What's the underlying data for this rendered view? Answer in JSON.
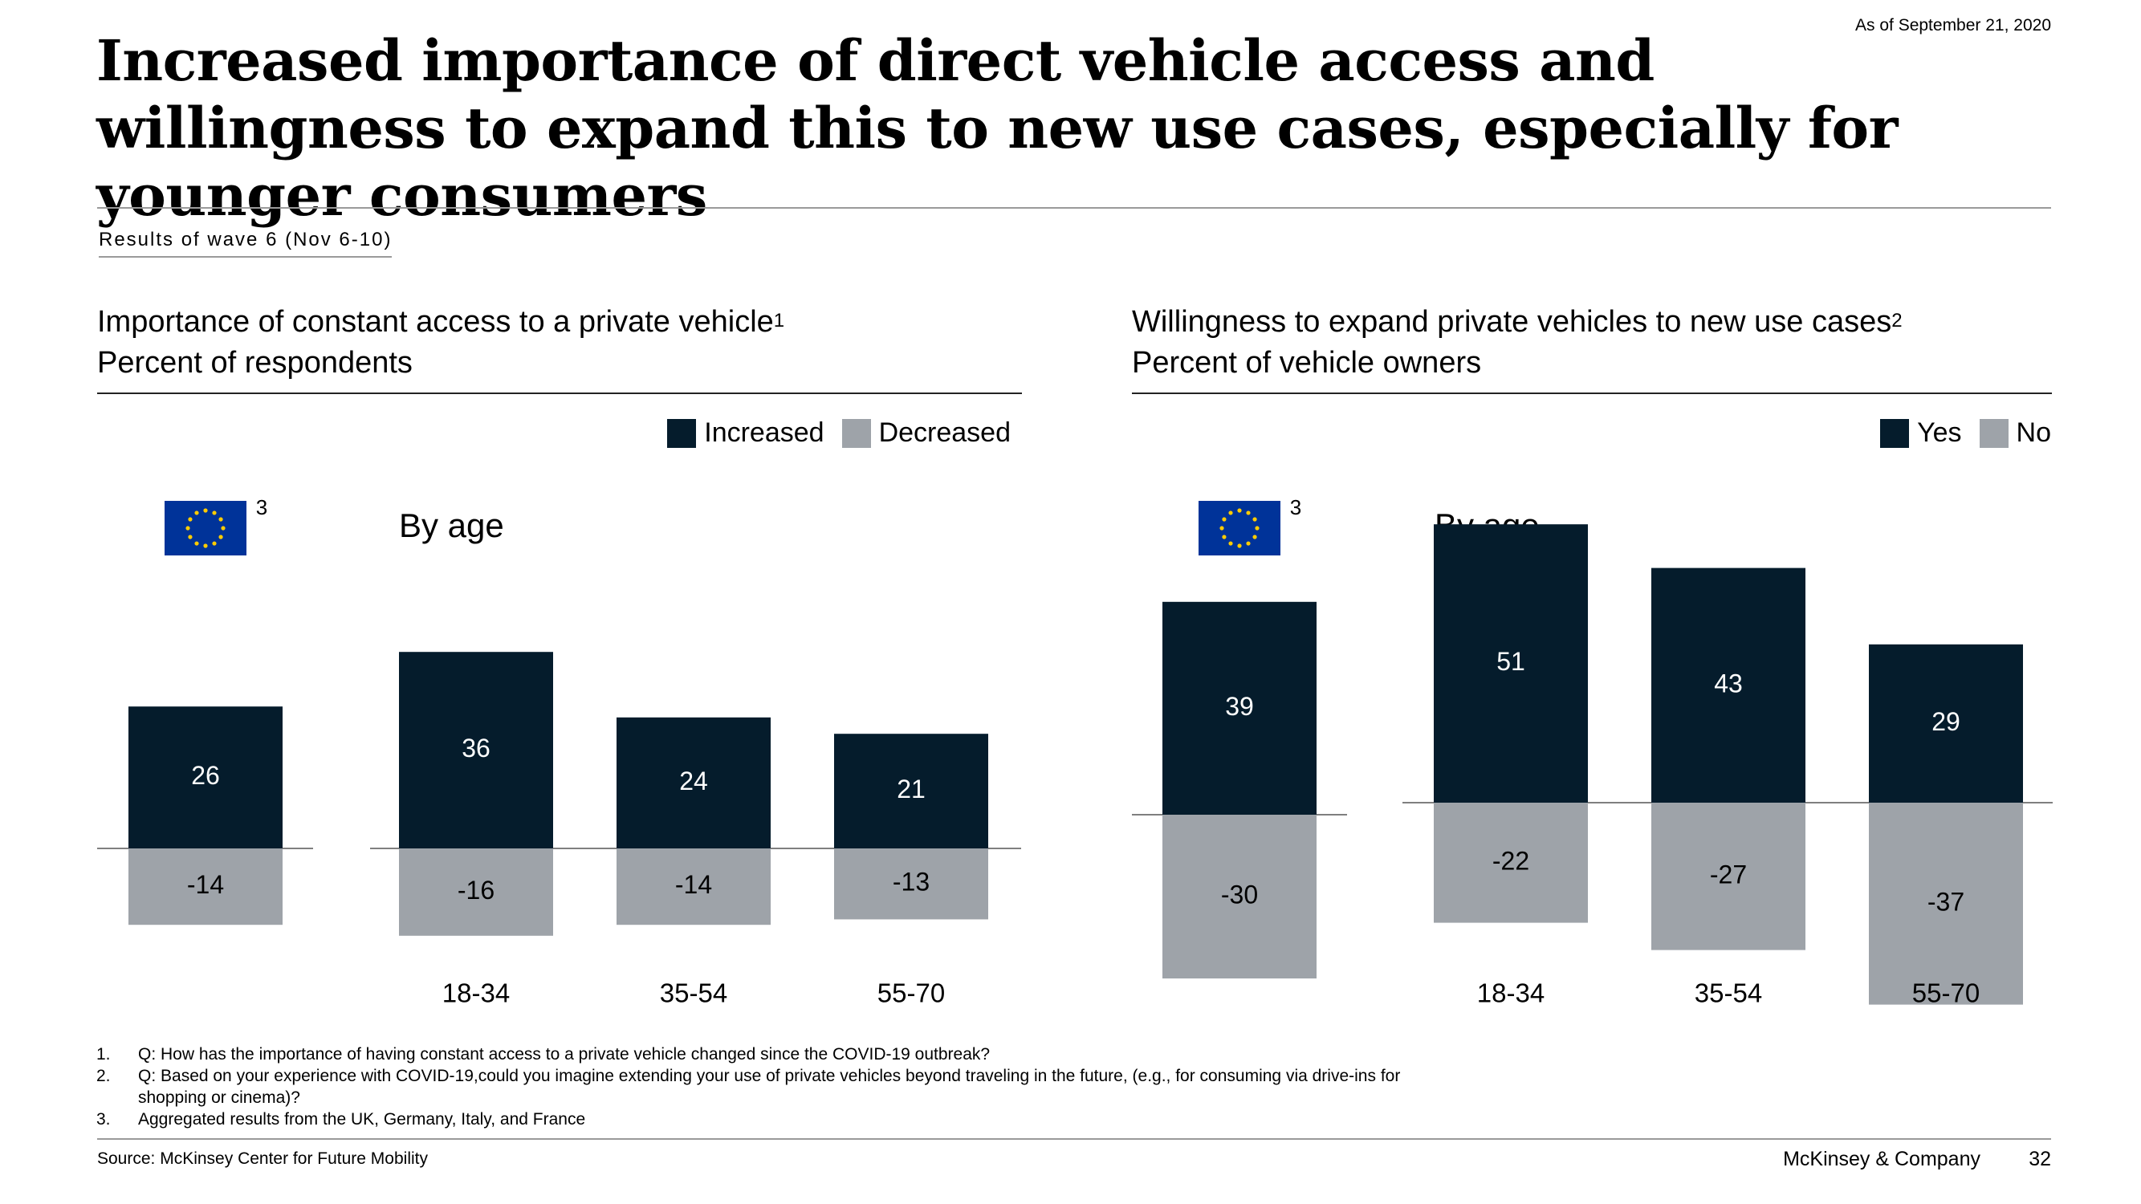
{
  "header": {
    "as_of": "As of September 21, 2020",
    "title": "Increased importance of direct vehicle access and willingness to expand this to new use cases, especially for younger consumers",
    "wave_label": "Results of wave 6 (Nov 6-10)"
  },
  "colors": {
    "positive": "#051c2c",
    "negative": "#9ea3a9",
    "eu_flag_blue": "#003399",
    "eu_flag_star": "#ffcc00"
  },
  "chart_data": [
    {
      "type": "bar",
      "title": "Importance of constant access to a private vehicle",
      "title_footnote": "1",
      "subtitle": "Percent of respondents",
      "legend": [
        "Increased",
        "Decreased"
      ],
      "legend_position": "top-right",
      "overall": {
        "icon": "eu-flag-icon",
        "footnote": "3",
        "positive": 26,
        "negative": -14
      },
      "group_label": "By age",
      "categories": [
        "18-34",
        "35-54",
        "55-70"
      ],
      "series": [
        {
          "name": "Increased",
          "values": [
            36,
            24,
            21
          ]
        },
        {
          "name": "Decreased",
          "values": [
            -16,
            -14,
            -13
          ]
        }
      ]
    },
    {
      "type": "bar",
      "title": "Willingness to expand private vehicles to new use cases",
      "title_footnote": "2",
      "subtitle": "Percent of vehicle owners",
      "legend": [
        "Yes",
        "No"
      ],
      "legend_position": "top-right",
      "overall": {
        "icon": "eu-flag-icon",
        "footnote": "3",
        "positive": 39,
        "negative": -30
      },
      "group_label": "By age",
      "categories": [
        "18-34",
        "35-54",
        "55-70"
      ],
      "series": [
        {
          "name": "Yes",
          "values": [
            51,
            43,
            29
          ]
        },
        {
          "name": "No",
          "values": [
            -22,
            -27,
            -37
          ]
        }
      ]
    }
  ],
  "footnotes": [
    {
      "num": "1.",
      "text": "Q: How has the importance of having constant access to a private vehicle changed since the COVID-19 outbreak?"
    },
    {
      "num": "2.",
      "text": "Q: Based on your experience with COVID-19,could you imagine extending your use of private vehicles beyond traveling in the future, (e.g., for consuming via drive-ins for shopping or cinema)?"
    },
    {
      "num": "3.",
      "text": "Aggregated results from the UK, Germany, Italy, and France"
    }
  ],
  "footer": {
    "source": "Source: McKinsey Center for Future Mobility",
    "brand": "McKinsey & Company",
    "page": "32"
  }
}
